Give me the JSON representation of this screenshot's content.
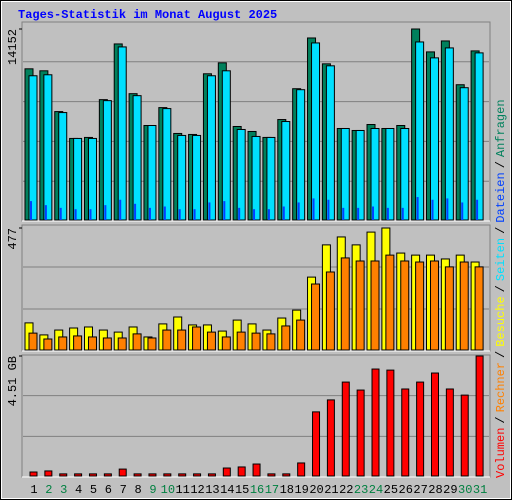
{
  "chart_data": [
    {
      "type": "bar",
      "title": "Tages-Statistik im Monat August 2025",
      "categories": [
        "1",
        "2",
        "3",
        "4",
        "5",
        "6",
        "7",
        "8",
        "9",
        "10",
        "11",
        "12",
        "13",
        "14",
        "15",
        "16",
        "17",
        "18",
        "19",
        "20",
        "21",
        "22",
        "23",
        "24",
        "25",
        "26",
        "27",
        "28",
        "29",
        "30",
        "31"
      ],
      "label_colors": [
        "#000000",
        "#008040",
        "#008040",
        "#000000",
        "#000000",
        "#000000",
        "#000000",
        "#000000",
        "#008040",
        "#008040",
        "#000000",
        "#000000",
        "#000000",
        "#000000",
        "#000000",
        "#008040",
        "#008040",
        "#000000",
        "#000000",
        "#000000",
        "#000000",
        "#000000",
        "#008040",
        "#008040",
        "#000000",
        "#000000",
        "#000000",
        "#000000",
        "#000000",
        "#008040",
        "#008040"
      ],
      "legend_separator": "/",
      "ylim": [
        0,
        14152
      ],
      "yticks": [
        14152
      ],
      "series": [
        {
          "name": "Anfragen",
          "color": "#00805c",
          "values": [
            11202,
            11055,
            8033,
            6043,
            6117,
            8918,
            13045,
            9360,
            7002,
            8328,
            6412,
            6338,
            10834,
            11645,
            6928,
            6559,
            6117,
            7444,
            9728,
            13487,
            11571,
            6780,
            6633,
            7075,
            6780,
            7002,
            14152,
            12455,
            13266,
            10023,
            12529
          ]
        },
        {
          "name": "Seiten",
          "color": "#00e0ff",
          "values": [
            10687,
            10760,
            7960,
            6043,
            6043,
            8844,
            12824,
            9213,
            7002,
            8254,
            6265,
            6265,
            10687,
            11055,
            6707,
            6191,
            6117,
            7296,
            9655,
            13119,
            11424,
            6780,
            6633,
            6780,
            6780,
            6780,
            13192,
            12013,
            12750,
            9802,
            12382
          ]
        },
        {
          "name": "Dateien",
          "color": "#0040ff",
          "values": [
            1400,
            1100,
            900,
            800,
            800,
            1100,
            1500,
            1200,
            900,
            1000,
            800,
            800,
            1300,
            1400,
            900,
            800,
            800,
            1000,
            1300,
            1600,
            1500,
            900,
            900,
            1000,
            900,
            900,
            1700,
            1500,
            1600,
            1300,
            1500
          ]
        }
      ]
    },
    {
      "type": "bar",
      "ylim": [
        0,
        477
      ],
      "yticks": [
        477
      ],
      "series": [
        {
          "name": "Besuche",
          "color": "#ffff00",
          "values": [
            106,
            59,
            78,
            86,
            90,
            78,
            70,
            90,
            51,
            102,
            129,
            98,
            98,
            74,
            117,
            102,
            78,
            125,
            156,
            285,
            411,
            442,
            411,
            461,
            477,
            379,
            371,
            371,
            356,
            371,
            344
          ]
        },
        {
          "name": "Rechner",
          "color": "#ff8000",
          "values": [
            66,
            43,
            51,
            55,
            51,
            47,
            47,
            63,
            47,
            78,
            78,
            90,
            70,
            51,
            70,
            66,
            63,
            94,
            117,
            258,
            305,
            360,
            348,
            348,
            371,
            348,
            344,
            348,
            325,
            344,
            325
          ]
        }
      ]
    },
    {
      "type": "bar",
      "ylim": [
        0,
        4.51
      ],
      "yticks": [
        {
          "value": 4.51,
          "label": "4.51 GB"
        }
      ],
      "series": [
        {
          "name": "Volumen",
          "color": "#ff0000",
          "values": [
            0.15,
            0.19,
            0.08,
            0.08,
            0.08,
            0.08,
            0.26,
            0.08,
            0.08,
            0.08,
            0.08,
            0.08,
            0.08,
            0.3,
            0.34,
            0.45,
            0.08,
            0.08,
            0.49,
            2.41,
            2.86,
            3.53,
            3.23,
            4.02,
            3.98,
            3.27,
            3.53,
            3.87,
            3.27,
            3.04,
            4.51
          ]
        }
      ]
    }
  ]
}
